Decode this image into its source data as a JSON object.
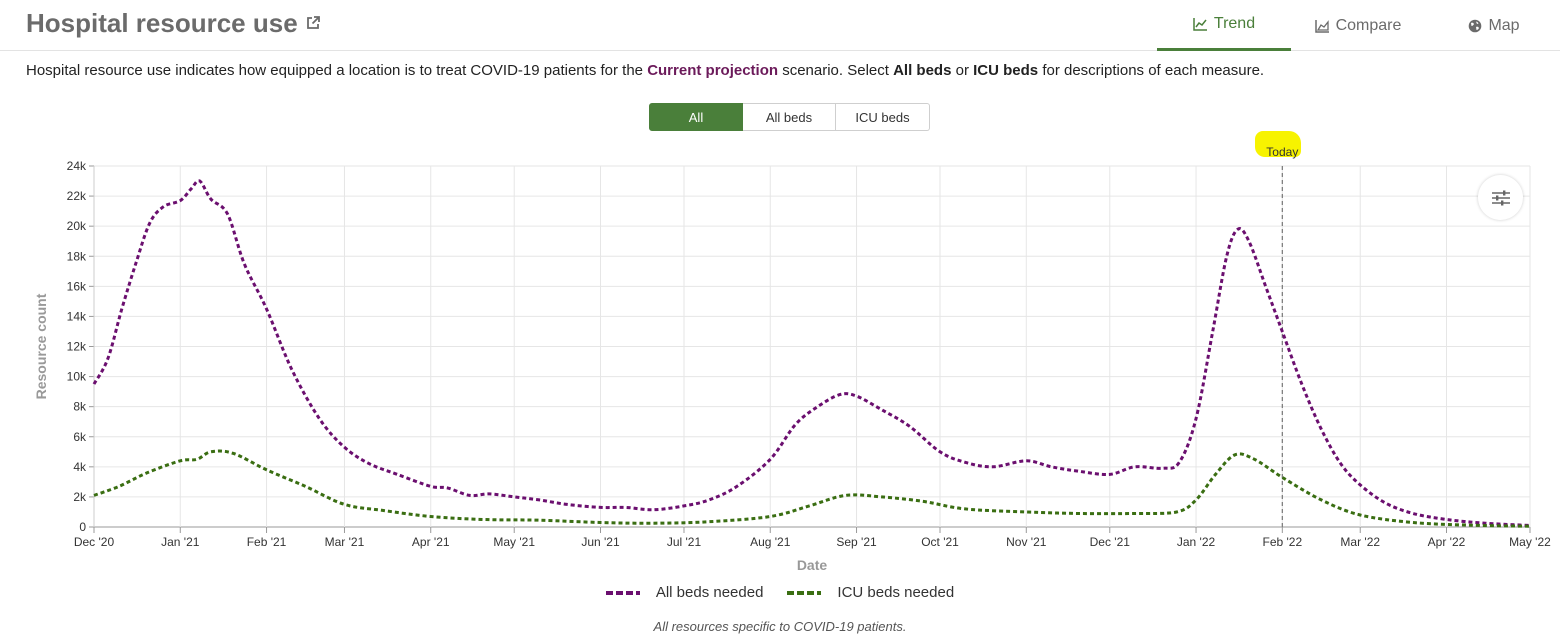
{
  "header": {
    "title": "Hospital resource use",
    "tabs": [
      {
        "label": "Trend",
        "icon": "line-chart-icon",
        "active": true
      },
      {
        "label": "Compare",
        "icon": "area-chart-icon",
        "active": false
      },
      {
        "label": "Map",
        "icon": "globe-icon",
        "active": false
      }
    ]
  },
  "description": {
    "pre": "Hospital resource use indicates how equipped a location is to treat COVID-19 patients for the ",
    "scenario": "Current projection",
    "mid1": " scenario. Select ",
    "opt1": "All beds",
    "mid2": " or ",
    "opt2": "ICU beds",
    "post": " for descriptions of each measure."
  },
  "filter_buttons": [
    {
      "label": "All",
      "selected": true
    },
    {
      "label": "All beds",
      "selected": false
    },
    {
      "label": "ICU beds",
      "selected": false
    }
  ],
  "colors": {
    "accent": "#4a7f3a",
    "all_beds": "#6b0f6f",
    "icu_beds": "#3a6e12",
    "highlight": "#f7f300"
  },
  "chart_data": {
    "type": "line",
    "xlabel": "Date",
    "ylabel": "Resource count",
    "xlim": [
      "2020-12-01",
      "2022-05-01"
    ],
    "ylim": [
      0,
      24000
    ],
    "y_ticks": [
      0,
      2000,
      4000,
      6000,
      8000,
      10000,
      12000,
      14000,
      16000,
      18000,
      20000,
      22000,
      24000
    ],
    "y_tick_labels": [
      "0",
      "2k",
      "4k",
      "6k",
      "8k",
      "10k",
      "12k",
      "14k",
      "16k",
      "18k",
      "20k",
      "22k",
      "24k"
    ],
    "x_ticks": [
      "2020-12-01",
      "2021-01-01",
      "2021-02-01",
      "2021-03-01",
      "2021-04-01",
      "2021-05-01",
      "2021-06-01",
      "2021-07-01",
      "2021-08-01",
      "2021-09-01",
      "2021-10-01",
      "2021-11-01",
      "2021-12-01",
      "2022-01-01",
      "2022-02-01",
      "2022-03-01",
      "2022-04-01",
      "2022-05-01"
    ],
    "x_tick_labels": [
      "Dec '20",
      "Jan '21",
      "Feb '21",
      "Mar '21",
      "Apr '21",
      "May '21",
      "Jun '21",
      "Jul '21",
      "Aug '21",
      "Sep '21",
      "Oct '21",
      "Nov '21",
      "Dec '21",
      "Jan '22",
      "Feb '22",
      "Mar '22",
      "Apr '22",
      "May '22"
    ],
    "grid": true,
    "legend_position": "bottom-center",
    "today": {
      "label": "Today",
      "date": "2022-02-01"
    },
    "series": [
      {
        "name": "All beds needed",
        "color": "#6b0f6f",
        "points": [
          [
            "2020-12-01",
            9500
          ],
          [
            "2020-12-06",
            11200
          ],
          [
            "2020-12-11",
            14500
          ],
          [
            "2020-12-16",
            17500
          ],
          [
            "2020-12-21",
            20200
          ],
          [
            "2020-12-26",
            21300
          ],
          [
            "2021-01-01",
            21700
          ],
          [
            "2021-01-05",
            22500
          ],
          [
            "2021-01-08",
            23000
          ],
          [
            "2021-01-12",
            21800
          ],
          [
            "2021-01-18",
            20800
          ],
          [
            "2021-01-24",
            17500
          ],
          [
            "2021-02-01",
            14500
          ],
          [
            "2021-02-10",
            10500
          ],
          [
            "2021-02-20",
            7200
          ],
          [
            "2021-03-01",
            5300
          ],
          [
            "2021-03-10",
            4200
          ],
          [
            "2021-03-20",
            3500
          ],
          [
            "2021-04-01",
            2700
          ],
          [
            "2021-04-07",
            2600
          ],
          [
            "2021-04-15",
            2100
          ],
          [
            "2021-04-22",
            2200
          ],
          [
            "2021-05-01",
            2000
          ],
          [
            "2021-05-10",
            1800
          ],
          [
            "2021-05-20",
            1500
          ],
          [
            "2021-06-01",
            1300
          ],
          [
            "2021-06-10",
            1300
          ],
          [
            "2021-06-20",
            1150
          ],
          [
            "2021-07-01",
            1400
          ],
          [
            "2021-07-10",
            1800
          ],
          [
            "2021-07-20",
            2700
          ],
          [
            "2021-08-01",
            4500
          ],
          [
            "2021-08-10",
            6800
          ],
          [
            "2021-08-18",
            8000
          ],
          [
            "2021-08-26",
            8800
          ],
          [
            "2021-09-01",
            8700
          ],
          [
            "2021-09-10",
            7800
          ],
          [
            "2021-09-20",
            6700
          ],
          [
            "2021-10-01",
            5000
          ],
          [
            "2021-10-10",
            4300
          ],
          [
            "2021-10-20",
            4000
          ],
          [
            "2021-11-01",
            4400
          ],
          [
            "2021-11-10",
            4000
          ],
          [
            "2021-11-20",
            3700
          ],
          [
            "2021-12-01",
            3500
          ],
          [
            "2021-12-10",
            4000
          ],
          [
            "2021-12-20",
            3900
          ],
          [
            "2021-12-26",
            4300
          ],
          [
            "2022-01-01",
            7200
          ],
          [
            "2022-01-07",
            13000
          ],
          [
            "2022-01-12",
            18000
          ],
          [
            "2022-01-16",
            19800
          ],
          [
            "2022-01-20",
            19000
          ],
          [
            "2022-01-26",
            16000
          ],
          [
            "2022-02-01",
            13000
          ],
          [
            "2022-02-08",
            9500
          ],
          [
            "2022-02-15",
            6500
          ],
          [
            "2022-02-22",
            4200
          ],
          [
            "2022-03-01",
            2800
          ],
          [
            "2022-03-10",
            1600
          ],
          [
            "2022-03-20",
            900
          ],
          [
            "2022-04-01",
            500
          ],
          [
            "2022-04-15",
            250
          ],
          [
            "2022-05-01",
            100
          ]
        ]
      },
      {
        "name": "ICU beds needed",
        "color": "#3a6e12",
        "points": [
          [
            "2020-12-01",
            2100
          ],
          [
            "2020-12-10",
            2700
          ],
          [
            "2020-12-20",
            3600
          ],
          [
            "2021-01-01",
            4400
          ],
          [
            "2021-01-07",
            4500
          ],
          [
            "2021-01-12",
            5000
          ],
          [
            "2021-01-20",
            4900
          ],
          [
            "2021-02-01",
            3800
          ],
          [
            "2021-02-15",
            2700
          ],
          [
            "2021-03-01",
            1500
          ],
          [
            "2021-03-15",
            1100
          ],
          [
            "2021-04-01",
            700
          ],
          [
            "2021-04-20",
            500
          ],
          [
            "2021-05-10",
            450
          ],
          [
            "2021-06-01",
            300
          ],
          [
            "2021-06-20",
            250
          ],
          [
            "2021-07-10",
            350
          ],
          [
            "2021-08-01",
            700
          ],
          [
            "2021-08-15",
            1400
          ],
          [
            "2021-08-28",
            2100
          ],
          [
            "2021-09-10",
            2000
          ],
          [
            "2021-09-25",
            1700
          ],
          [
            "2021-10-10",
            1200
          ],
          [
            "2021-11-01",
            1000
          ],
          [
            "2021-11-20",
            900
          ],
          [
            "2021-12-10",
            900
          ],
          [
            "2021-12-25",
            1000
          ],
          [
            "2022-01-01",
            1800
          ],
          [
            "2022-01-08",
            3500
          ],
          [
            "2022-01-15",
            4800
          ],
          [
            "2022-01-22",
            4500
          ],
          [
            "2022-02-01",
            3300
          ],
          [
            "2022-02-15",
            1800
          ],
          [
            "2022-03-01",
            800
          ],
          [
            "2022-03-20",
            300
          ],
          [
            "2022-04-10",
            120
          ],
          [
            "2022-05-01",
            50
          ]
        ]
      }
    ]
  },
  "footnote": "All resources specific to COVID-19 patients."
}
